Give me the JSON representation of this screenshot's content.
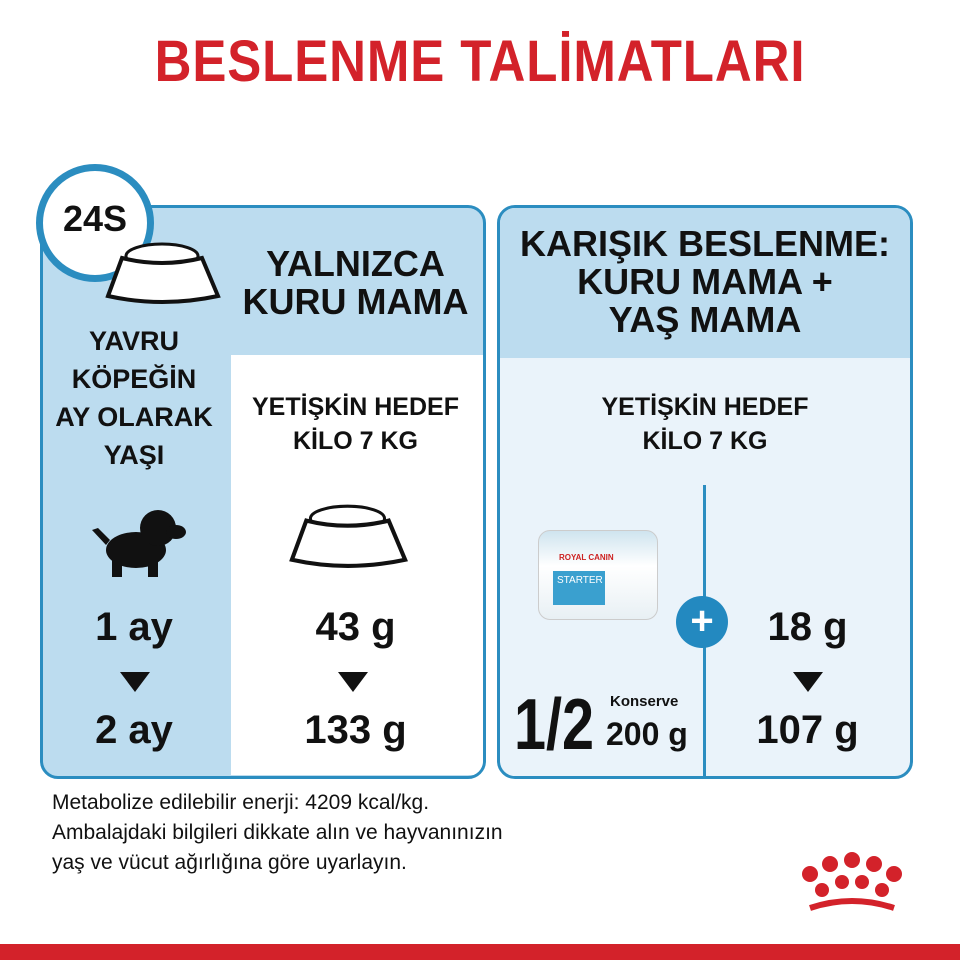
{
  "title": "BESLENME TALİMATLARI",
  "clock": {
    "label": "24S",
    "icon": "clock-icon"
  },
  "age": {
    "heading": [
      "YAVRU",
      "KÖPEĞİN",
      "AY OLARAK",
      "YAŞI"
    ],
    "from": "1 ay",
    "to": "2 ay"
  },
  "dry_only": {
    "heading": [
      "YALNIZCA",
      "KURU MAMA"
    ],
    "target": [
      "YETİŞKİN HEDEF",
      "KİLO 7 KG"
    ],
    "from": "43 g",
    "to": "133 g"
  },
  "mixed": {
    "heading": [
      "KARIŞIK BESLENME:",
      "KURU MAMA +",
      "YAŞ MAMA"
    ],
    "target": [
      "YETİŞKİN HEDEF",
      "KİLO 7 KG"
    ],
    "can": {
      "fraction": "1/2",
      "unit": "Konserve",
      "weight": "200 g",
      "brand": "ROYAL CANIN",
      "product": "STARTER"
    },
    "dry_from": "18 g",
    "dry_to": "107 g"
  },
  "footer": [
    "Metabolize edilebilir enerji: 4209 kcal/kg.",
    "Ambalajdaki bilgileri dikkate alın ve hayvanınızın",
    "yaş ve vücut ağırlığına göre uyarlayın."
  ],
  "colors": {
    "red": "#d3222a",
    "blue": "#2b8dc0",
    "panel_blue": "#bcdcef",
    "panel_light": "#eaf3fa"
  }
}
